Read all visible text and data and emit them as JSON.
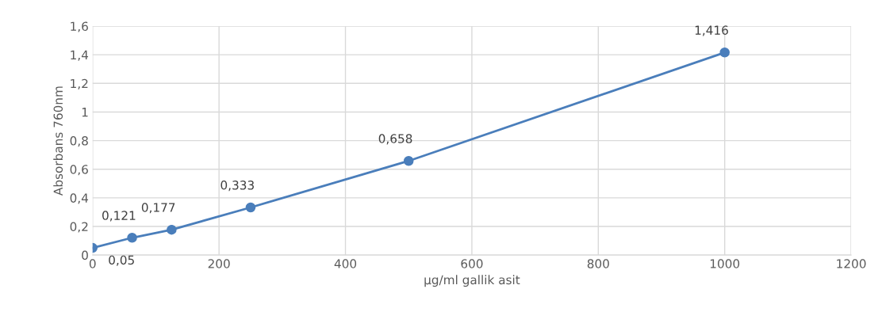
{
  "chart_data": {
    "type": "line",
    "xlabel": "µg/ml gallik asit",
    "ylabel": "Absorbans 760nm",
    "x": [
      0,
      62.5,
      125,
      250,
      500,
      1000
    ],
    "series": [
      {
        "color": "#4a7ebb",
        "values": [
          0.05,
          0.121,
          0.177,
          0.333,
          0.658,
          1.416
        ],
        "value_labels": [
          "0,05",
          "0,121",
          "0,177",
          "0,333",
          "0,658",
          "1,416"
        ]
      }
    ],
    "xlim": [
      0,
      1200
    ],
    "xticks": [
      0,
      200,
      400,
      600,
      800,
      1000,
      1200
    ],
    "ylim": [
      0,
      1.6
    ],
    "yticks": [
      0,
      {
        "value": 0.2,
        "label": "0,2"
      },
      {
        "value": 0.4,
        "label": "0,4"
      },
      {
        "value": 0.6,
        "label": "0,6"
      },
      {
        "value": 0.8,
        "label": "0,8"
      },
      1,
      {
        "value": 1.2,
        "label": "1,2"
      },
      {
        "value": 1.4,
        "label": "1,4"
      },
      {
        "value": 1.6,
        "label": "1,6"
      }
    ],
    "grid": true,
    "marker": "circle",
    "line_style": "solid"
  }
}
